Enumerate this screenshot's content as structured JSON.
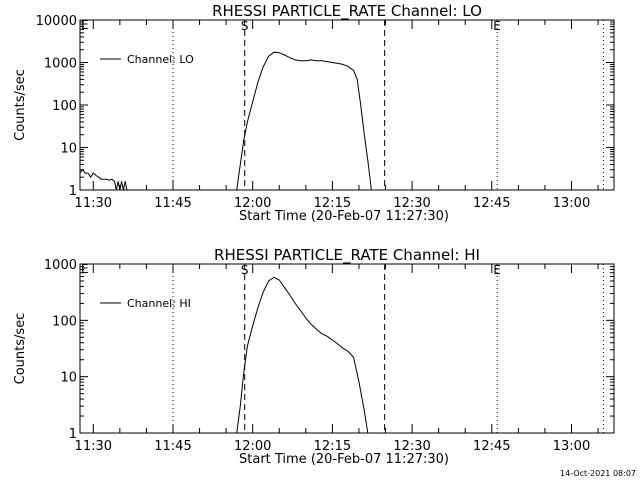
{
  "footer": {
    "timestamp": "14-Oct-2021 08:07"
  },
  "chart_data": [
    {
      "type": "line",
      "title": "RHESSI PARTICLE_RATE Channel: LO",
      "xlabel": "Start Time (20-Feb-07 11:27:30)",
      "ylabel": "Counts/sec",
      "yscale": "log",
      "ylim": [
        1,
        10000
      ],
      "xlim": [
        "11:27:30",
        "13:08:00"
      ],
      "x_ticks": [
        "11:30",
        "11:45",
        "12:00",
        "12:15",
        "12:30",
        "12:45",
        "13:00"
      ],
      "y_ticks": [
        "1",
        "10",
        "100",
        "1000",
        "10000"
      ],
      "markers": [
        {
          "label": "S",
          "time": "11:58:30",
          "style": "dashed"
        },
        {
          "label": "",
          "time": "12:24:50",
          "style": "dashed"
        },
        {
          "label": "",
          "time": "11:45:00",
          "style": "dotted"
        },
        {
          "label": "E",
          "time": "12:46:00",
          "style": "dotted"
        },
        {
          "label": "",
          "time": "13:06:00",
          "style": "dotted"
        }
      ],
      "corner_label": "E",
      "series": [
        {
          "name": "Channel: LO",
          "x": [
            "11:27:30",
            "11:28:00",
            "11:28:30",
            "11:29:00",
            "11:29:30",
            "11:30:00",
            "11:30:30",
            "11:31:00",
            "11:31:30",
            "11:32:00",
            "11:32:30",
            "11:33:00",
            "11:33:30",
            "11:34:00",
            "11:34:20",
            "11:34:40",
            "11:35:00",
            "11:35:20",
            "11:35:40",
            "11:36:00",
            "11:36:20",
            "11:57:00",
            "11:57:40",
            "11:58:20",
            "11:59:00",
            "12:00:00",
            "12:01:00",
            "12:02:00",
            "12:03:00",
            "12:04:00",
            "12:05:00",
            "12:06:00",
            "12:07:00",
            "12:08:00",
            "12:09:00",
            "12:10:00",
            "12:11:00",
            "12:12:00",
            "12:13:00",
            "12:14:00",
            "12:15:00",
            "12:16:00",
            "12:17:00",
            "12:18:00",
            "12:19:00",
            "12:19:40",
            "12:20:20",
            "12:21:00",
            "12:21:40",
            "12:22:20"
          ],
          "y": [
            2.5,
            3.0,
            2.5,
            2.5,
            2.0,
            2.5,
            2.2,
            2.0,
            1.8,
            1.8,
            1.8,
            1.7,
            1.8,
            1.6,
            1.0,
            1.6,
            1.0,
            1.6,
            1.0,
            1.6,
            1.0,
            1.0,
            4,
            15,
            40,
            120,
            350,
            800,
            1400,
            1750,
            1700,
            1500,
            1300,
            1150,
            1100,
            1100,
            1150,
            1100,
            1100,
            1050,
            1000,
            950,
            900,
            800,
            650,
            400,
            100,
            20,
            5,
            1.0
          ]
        }
      ]
    },
    {
      "type": "line",
      "title": "RHESSI PARTICLE_RATE Channel: HI",
      "xlabel": "Start Time (20-Feb-07 11:27:30)",
      "ylabel": "Counts/sec",
      "yscale": "log",
      "ylim": [
        1,
        1000
      ],
      "xlim": [
        "11:27:30",
        "13:08:00"
      ],
      "x_ticks": [
        "11:30",
        "11:45",
        "12:00",
        "12:15",
        "12:30",
        "12:45",
        "13:00"
      ],
      "y_ticks": [
        "1",
        "10",
        "100",
        "1000"
      ],
      "markers": [
        {
          "label": "S",
          "time": "11:58:30",
          "style": "dashed"
        },
        {
          "label": "",
          "time": "12:24:50",
          "style": "dashed"
        },
        {
          "label": "",
          "time": "11:45:00",
          "style": "dotted"
        },
        {
          "label": "E",
          "time": "12:46:00",
          "style": "dotted"
        },
        {
          "label": "",
          "time": "13:06:00",
          "style": "dotted"
        }
      ],
      "corner_label": "E",
      "series": [
        {
          "name": "Channel: HI",
          "x": [
            "11:57:00",
            "11:57:40",
            "11:58:20",
            "11:59:00",
            "12:00:00",
            "12:01:00",
            "12:02:00",
            "12:03:00",
            "12:04:00",
            "12:05:00",
            "12:06:00",
            "12:07:00",
            "12:08:00",
            "12:09:00",
            "12:10:00",
            "12:11:00",
            "12:12:00",
            "12:13:00",
            "12:14:00",
            "12:15:00",
            "12:16:00",
            "12:17:00",
            "12:18:00",
            "12:19:00",
            "12:20:00",
            "12:21:00",
            "12:21:40"
          ],
          "y": [
            1.0,
            3,
            12,
            35,
            80,
            170,
            320,
            500,
            580,
            520,
            380,
            280,
            200,
            150,
            110,
            85,
            70,
            58,
            52,
            45,
            38,
            32,
            28,
            22,
            8,
            2.5,
            1.0
          ]
        }
      ]
    }
  ]
}
